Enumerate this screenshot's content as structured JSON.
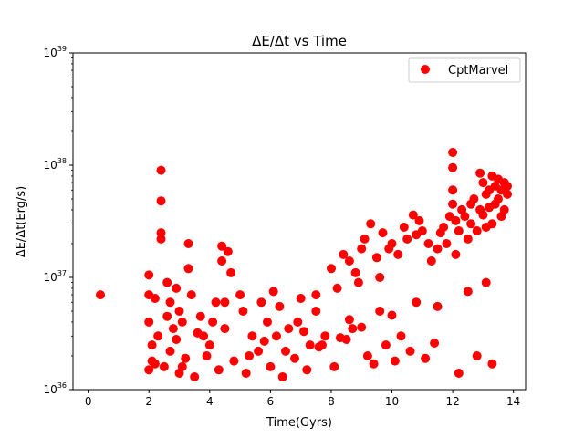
{
  "chart_data": {
    "type": "scatter",
    "title": "ΔE/Δt vs Time",
    "xlabel": "Time(Gyrs)",
    "ylabel": "ΔE/Δt(Erg/s)",
    "xlim": [
      -0.5,
      14.4
    ],
    "ylim": [
      1e+36,
      1e+39
    ],
    "yscale": "log",
    "xticks": [
      0,
      2,
      4,
      6,
      8,
      10,
      12,
      14
    ],
    "yticks": [
      {
        "value": 1e+36,
        "base": "10",
        "exp": "36"
      },
      {
        "value": 1e+37,
        "base": "10",
        "exp": "37"
      },
      {
        "value": 1e+38,
        "base": "10",
        "exp": "38"
      },
      {
        "value": 1e+39,
        "base": "10",
        "exp": "39"
      }
    ],
    "grid": false,
    "legend": {
      "position": "top-right"
    },
    "series": [
      {
        "name": "CptMarvel",
        "color": "#ff0000",
        "marker": "circle",
        "x": [
          0.4,
          2.0,
          2.0,
          2.0,
          2.1,
          2.1,
          2.2,
          2.4,
          2.4,
          2.4,
          2.4,
          2.6,
          2.7,
          2.8,
          2.9,
          3.0,
          3.1,
          3.3,
          3.3,
          3.4,
          3.7,
          3.8,
          4.1,
          4.2,
          4.4,
          4.4,
          4.5,
          4.6,
          4.7,
          5.0,
          5.1,
          5.4,
          5.7,
          5.9,
          6.1,
          6.3,
          6.6,
          7.0,
          7.3,
          7.5,
          7.5,
          7.8,
          8.0,
          8.2,
          8.4,
          8.6,
          8.8,
          8.9,
          9.0,
          9.1,
          9.3,
          9.5,
          9.6,
          9.7,
          9.9,
          10.0,
          10.2,
          10.4,
          10.5,
          10.7,
          10.8,
          10.9,
          11.0,
          11.2,
          11.3,
          11.5,
          11.6,
          11.7,
          11.8,
          11.9,
          12.0,
          12.0,
          12.0,
          12.0,
          12.1,
          12.1,
          12.2,
          12.3,
          12.4,
          12.5,
          12.6,
          12.6,
          12.7,
          12.8,
          12.9,
          12.9,
          13.0,
          13.0,
          13.1,
          13.1,
          13.2,
          13.2,
          13.3,
          13.3,
          13.4,
          13.4,
          13.5,
          13.5,
          13.6,
          13.6,
          13.7,
          13.7,
          13.8,
          13.8,
          2.0,
          2.2,
          2.5,
          2.7,
          3.0,
          3.2,
          3.5,
          3.9,
          4.3,
          4.8,
          5.2,
          5.6,
          6.0,
          6.4,
          6.8,
          7.2,
          7.6,
          8.1,
          8.5,
          8.7,
          9.2,
          9.4,
          9.8,
          10.1,
          10.3,
          10.6,
          11.1,
          11.4,
          12.2,
          12.8,
          13.3,
          2.3,
          2.6,
          2.9,
          3.1,
          3.6,
          4.0,
          4.5,
          5.3,
          5.8,
          6.2,
          6.5,
          6.9,
          7.1,
          7.7,
          8.3,
          8.6,
          9.0,
          9.6,
          10.0,
          10.8,
          11.5,
          12.5,
          13.1
        ],
        "y": [
          7e+36,
          1.05e+37,
          7e+36,
          4e+36,
          2.5e+36,
          1.8e+36,
          6.5e+36,
          9e+37,
          4.8e+37,
          2.5e+37,
          2.2e+37,
          9e+36,
          6e+36,
          3.5e+36,
          8e+36,
          5e+36,
          4e+36,
          2e+37,
          1.2e+37,
          7e+36,
          4.5e+36,
          3e+36,
          4e+36,
          6e+36,
          1.9e+37,
          1.4e+37,
          6e+36,
          1.7e+37,
          1.1e+37,
          7e+36,
          5e+36,
          3e+36,
          6e+36,
          4e+36,
          7.5e+36,
          5.5e+36,
          3.5e+36,
          6.5e+36,
          2.5e+36,
          7e+36,
          5e+36,
          3e+36,
          1.2e+37,
          8e+36,
          1.6e+37,
          1.4e+37,
          1.1e+37,
          9e+36,
          1.8e+37,
          2.2e+37,
          3e+37,
          1.5e+37,
          1e+37,
          2.5e+37,
          1.8e+37,
          2e+37,
          1.6e+37,
          2.8e+37,
          2.2e+37,
          3.6e+37,
          2.4e+37,
          3.2e+37,
          2.6e+37,
          2e+37,
          1.4e+37,
          1.8e+37,
          2.5e+37,
          2.8e+37,
          2e+37,
          3.5e+37,
          1.3e+38,
          9.5e+37,
          6e+37,
          4.5e+37,
          3.2e+37,
          1.6e+37,
          2.6e+37,
          4e+37,
          3.5e+37,
          2.2e+37,
          4.5e+37,
          3e+37,
          5e+37,
          2.6e+37,
          8.5e+37,
          4e+37,
          7e+37,
          3.6e+37,
          5.5e+37,
          2.8e+37,
          4.2e+37,
          6e+37,
          8e+37,
          3e+37,
          6.5e+37,
          4.5e+37,
          7.5e+37,
          5e+37,
          3.5e+37,
          6e+37,
          7e+37,
          4e+37,
          6.5e+37,
          5.5e+37,
          1.5e+36,
          1.7e+36,
          1.6e+36,
          2.2e+36,
          1.4e+36,
          1.9e+36,
          1.3e+36,
          2e+36,
          1.5e+36,
          1.8e+36,
          1.4e+36,
          2.2e+36,
          1.6e+36,
          1.3e+36,
          1.9e+36,
          1.5e+36,
          2.4e+36,
          1.6e+36,
          2.8e+36,
          3.5e+36,
          2e+36,
          1.7e+36,
          2.5e+36,
          1.8e+36,
          3e+36,
          2.2e+36,
          1.9e+36,
          2.6e+36,
          1.4e+36,
          2e+36,
          1.7e+36,
          3e+36,
          4.5e+36,
          2.8e+36,
          1.6e+36,
          3.2e+36,
          2.5e+36,
          3.5e+36,
          2e+36,
          2.7e+36,
          3e+36,
          2.2e+36,
          4e+36,
          3.3e+36,
          2.5e+36,
          2.9e+36,
          4.2e+36,
          3.6e+36,
          5e+36,
          4.6e+36,
          6e+36,
          5.5e+36,
          7.5e+36,
          9e+36
        ]
      }
    ]
  }
}
